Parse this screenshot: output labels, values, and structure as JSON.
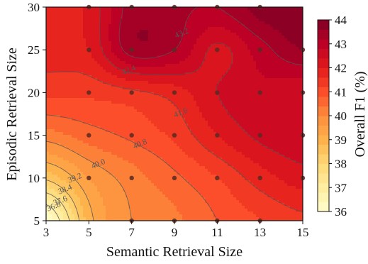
{
  "chart_data": {
    "type": "heatmap",
    "subtype": "filled-contour",
    "title": "",
    "xlabel": "Semantic Retrieval Size",
    "ylabel": "Episodic Retrieval Size",
    "colorbar_label": "Overall F1 (%)",
    "x_ticks": [
      3,
      5,
      7,
      9,
      11,
      13,
      15
    ],
    "y_ticks": [
      5,
      10,
      15,
      20,
      25,
      30
    ],
    "xlim": [
      3,
      15
    ],
    "ylim": [
      5,
      30
    ],
    "zlim": [
      36,
      44
    ],
    "colorbar_ticks": [
      36,
      37,
      38,
      39,
      40,
      41,
      42,
      43,
      44
    ],
    "contour_levels": [
      36.8,
      37.6,
      38.4,
      39.2,
      40.0,
      40.8,
      41.6,
      42.4,
      43.2
    ],
    "contour_labels": [
      "36.8",
      "37.6",
      "38.4",
      "39.2",
      "40.0",
      "40.8",
      "41.6",
      "42.4",
      "43.2"
    ],
    "colormap_stops": [
      "#ffffcc",
      "#ffeda0",
      "#fed976",
      "#feb24c",
      "#fd8d3c",
      "#fc4e2a",
      "#e31a1c",
      "#bd0026",
      "#800026"
    ],
    "grid_x": [
      3,
      5,
      7,
      9,
      11,
      13,
      15
    ],
    "grid_y": [
      5,
      10,
      15,
      20,
      25,
      30
    ],
    "z": [
      [
        36.0,
        39.0,
        40.0,
        40.3,
        40.8,
        41.2,
        41.5
      ],
      [
        38.5,
        39.6,
        40.2,
        40.7,
        41.2,
        41.8,
        42.2
      ],
      [
        40.2,
        40.6,
        40.9,
        41.3,
        42.0,
        42.5,
        42.7
      ],
      [
        41.3,
        41.3,
        41.5,
        41.8,
        42.4,
        42.7,
        42.5
      ],
      [
        41.8,
        42.0,
        43.4,
        43.2,
        42.3,
        43.0,
        43.6
      ],
      [
        41.9,
        42.1,
        43.4,
        43.3,
        43.2,
        43.8,
        44.0
      ]
    ],
    "markers": [
      [
        5,
        30
      ],
      [
        7,
        30
      ],
      [
        9,
        30
      ],
      [
        11,
        30
      ],
      [
        13,
        30
      ],
      [
        5,
        25
      ],
      [
        7,
        25
      ],
      [
        9,
        25
      ],
      [
        11,
        25
      ],
      [
        13,
        25
      ],
      [
        15,
        25
      ],
      [
        5,
        20
      ],
      [
        7,
        20
      ],
      [
        9,
        20
      ],
      [
        11,
        20
      ],
      [
        13,
        20
      ],
      [
        15,
        20
      ],
      [
        5,
        15
      ],
      [
        7,
        15
      ],
      [
        9,
        15
      ],
      [
        11,
        15
      ],
      [
        13,
        15
      ],
      [
        15,
        15
      ],
      [
        5,
        10
      ],
      [
        7,
        10
      ],
      [
        9,
        10
      ],
      [
        11,
        10
      ],
      [
        13,
        10
      ],
      [
        15,
        10
      ],
      [
        7,
        5
      ],
      [
        9,
        5
      ],
      [
        11,
        5
      ],
      [
        13,
        5
      ]
    ]
  }
}
